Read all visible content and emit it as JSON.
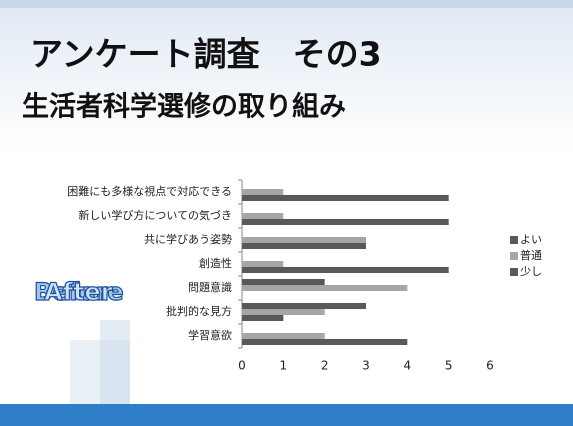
{
  "header": {
    "title": "アンケート調査　その3",
    "subtitle": "生活者科学選修の取り組み"
  },
  "logo": {
    "back": "Before",
    "front": "After"
  },
  "chart_data": {
    "type": "bar",
    "orientation": "horizontal",
    "categories": [
      "困難にも多様な視点で対応できる",
      "新しい学び方についての気づき",
      "共に学びあう姿勢",
      "創造性",
      "問題意識",
      "批判的な見方",
      "学習意欲"
    ],
    "series": [
      {
        "name": "よい",
        "color": "#595959",
        "values": [
          5,
          5,
          3,
          5,
          0,
          1,
          4
        ]
      },
      {
        "name": "普通",
        "color": "#a6a6a6",
        "values": [
          1,
          1,
          3,
          1,
          4,
          2,
          2
        ]
      },
      {
        "name": "少し",
        "color": "#595959",
        "values": [
          0,
          0,
          0,
          0,
          2,
          3,
          0
        ]
      }
    ],
    "xlim": [
      0,
      6
    ],
    "xticks": [
      0,
      1,
      2,
      3,
      4,
      5,
      6
    ],
    "grid": false,
    "legend": "right"
  }
}
